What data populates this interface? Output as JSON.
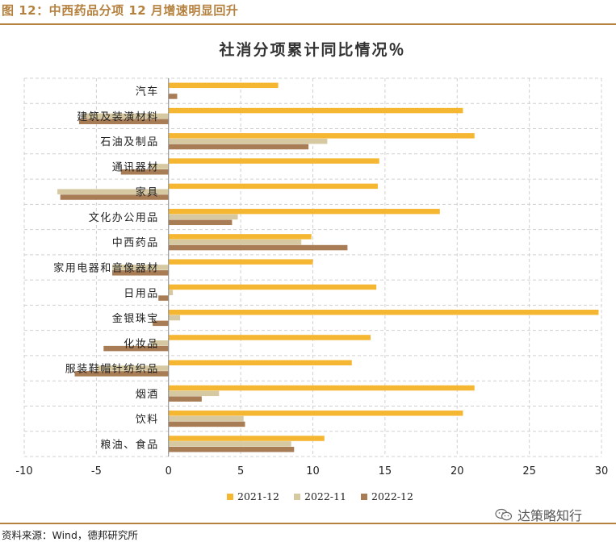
{
  "figure_title": "图 12：中西药品分项 12 月增速明显回升",
  "source_text": "资料来源：Wind，德邦研究所",
  "watermark_text": "达策略知行",
  "watermark_icon": "wechat-icon",
  "chart_data": {
    "type": "bar",
    "orientation": "horizontal",
    "title": "社消分项累计同比情况％",
    "xlabel": "",
    "ylabel": "",
    "xlim": [
      -10,
      30
    ],
    "xticks": [
      -10,
      -5,
      0,
      5,
      10,
      15,
      20,
      25,
      30
    ],
    "categories": [
      "汽车",
      "建筑及装潢材料",
      "石油及制品",
      "通讯器材",
      "家具",
      "文化办公用品",
      "中西药品",
      "家用电器和音像器材",
      "日用品",
      "金银珠宝",
      "化妆品",
      "服装鞋帽针纺织品",
      "烟酒",
      "饮料",
      "粮油、食品"
    ],
    "series": [
      {
        "name": "2021-12",
        "color": "#f5b631",
        "values": [
          7.6,
          20.4,
          21.2,
          14.6,
          14.5,
          18.8,
          9.9,
          10.0,
          14.4,
          29.8,
          14.0,
          12.7,
          21.2,
          20.4,
          10.8
        ]
      },
      {
        "name": "2022-11",
        "color": "#d6c8a0",
        "values": [
          0.0,
          -6.0,
          11.0,
          -1.3,
          -7.7,
          4.8,
          9.2,
          -3.9,
          0.3,
          0.8,
          -1.2,
          -5.0,
          3.5,
          5.2,
          8.5
        ]
      },
      {
        "name": "2022-12",
        "color": "#a87c55",
        "values": [
          0.6,
          -6.2,
          9.7,
          -3.3,
          -7.5,
          4.4,
          12.4,
          -3.9,
          -0.7,
          -1.1,
          -4.5,
          -6.5,
          2.3,
          5.3,
          8.7
        ]
      }
    ],
    "legend_position": "bottom",
    "grid": true,
    "grid_style": "dashed"
  }
}
